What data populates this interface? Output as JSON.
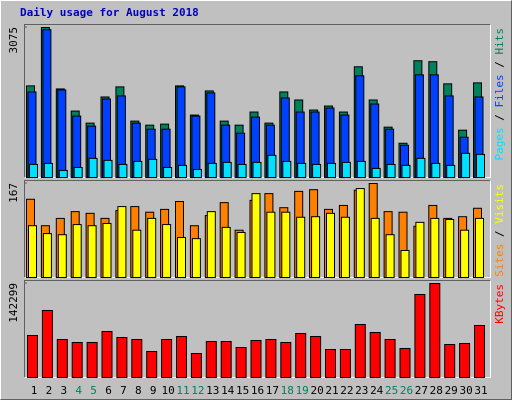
{
  "title": "Daily usage for August 2018",
  "categories": [
    "1",
    "2",
    "3",
    "4",
    "5",
    "6",
    "7",
    "8",
    "9",
    "10",
    "11",
    "12",
    "13",
    "14",
    "15",
    "16",
    "17",
    "18",
    "19",
    "20",
    "21",
    "22",
    "23",
    "24",
    "25",
    "26",
    "27",
    "28",
    "29",
    "30",
    "31"
  ],
  "category_colors": [
    "#000000",
    "#000000",
    "#000000",
    "#00805c",
    "#00805c",
    "#000000",
    "#000000",
    "#000000",
    "#000000",
    "#000000",
    "#00805c",
    "#00805c",
    "#000000",
    "#000000",
    "#000000",
    "#000000",
    "#000000",
    "#00805c",
    "#00805c",
    "#000000",
    "#000000",
    "#000000",
    "#000000",
    "#000000",
    "#00805c",
    "#00805c",
    "#000000",
    "#000000",
    "#000000",
    "#000000",
    "#000000"
  ],
  "chart_data": [
    {
      "type": "bar",
      "label_separator": " / ",
      "ylim": [
        0,
        3075
      ],
      "yticks": [
        3075
      ],
      "series": [
        {
          "name": "Hits",
          "color": "#00805c",
          "values": [
            1878,
            3075,
            1816,
            1362,
            1115,
            1651,
            1858,
            1156,
            1073,
            1094,
            1878,
            1280,
            1775,
            1156,
            1073,
            1342,
            1115,
            1754,
            1589,
            1383,
            1465,
            1342,
            2270,
            1589,
            1032,
            702,
            2394,
            2374,
            1920,
            970,
            1940
          ]
        },
        {
          "name": "Files",
          "color": "#0040ff",
          "values": [
            1754,
            3030,
            1795,
            1259,
            1053,
            1610,
            1672,
            1115,
            990,
            990,
            1858,
            1259,
            1734,
            1073,
            908,
            1238,
            1073,
            1630,
            1342,
            1342,
            1424,
            1280,
            2085,
            1506,
            990,
            660,
            2105,
            2105,
            1672,
            825,
            1651
          ]
        },
        {
          "name": "Pages",
          "color": "#00e0ff",
          "values": [
            268,
            289,
            145,
            206,
            392,
            351,
            268,
            330,
            372,
            206,
            248,
            165,
            289,
            310,
            268,
            310,
            454,
            330,
            289,
            268,
            289,
            310,
            330,
            186,
            268,
            248,
            392,
            289,
            248,
            495,
            474
          ]
        }
      ]
    },
    {
      "type": "bar",
      "label_separator": " / ",
      "ylim": [
        0,
        167
      ],
      "yticks": [
        167
      ],
      "series": [
        {
          "name": "Visits",
          "color": "#ffff00",
          "values": [
            92,
            78,
            76,
            94,
            92,
            96,
            126,
            84,
            105,
            94,
            71,
            69,
            117,
            89,
            80,
            149,
            116,
            116,
            107,
            108,
            114,
            107,
            158,
            105,
            76,
            48,
            98,
            105,
            103,
            84,
            105
          ]
        },
        {
          "name": "Sites",
          "color": "#ff8000",
          "values": [
            139,
            92,
            105,
            117,
            114,
            105,
            119,
            126,
            116,
            121,
            135,
            92,
            110,
            133,
            84,
            137,
            149,
            124,
            153,
            156,
            121,
            128,
            155,
            167,
            117,
            116,
            91,
            128,
            105,
            108,
            123
          ]
        }
      ]
    },
    {
      "type": "bar",
      "label_separator": " / ",
      "ylim": [
        0,
        142299
      ],
      "yticks": [
        142299
      ],
      "series": [
        {
          "name": "KBytes",
          "color": "#ff0000",
          "values": [
            63588,
            101438,
            57532,
            52990,
            52990,
            69644,
            60560,
            57532,
            39364,
            57532,
            62074,
            36336,
            54504,
            54504,
            45420,
            56018,
            57532,
            52990,
            66616,
            62074,
            42392,
            42392,
            80242,
            68130,
            57532,
            43906,
            125662,
            142299,
            49962,
            51476,
            78728
          ]
        }
      ]
    }
  ]
}
